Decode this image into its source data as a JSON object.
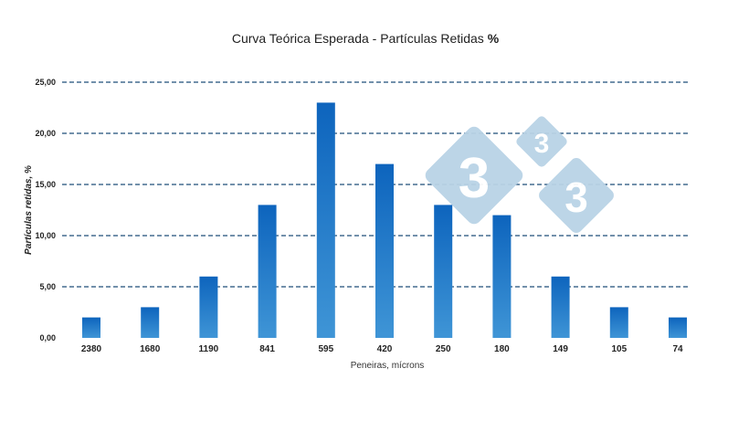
{
  "chart_data": {
    "type": "bar",
    "title": "Curva Teórica Esperada - Partículas Retidas",
    "title_suffix": "%",
    "xlabel": "Peneiras, mícrons",
    "ylabel": "Partículas retidas, %",
    "categories": [
      "2380",
      "1680",
      "1190",
      "841",
      "595",
      "420",
      "250",
      "180",
      "149",
      "105",
      "74"
    ],
    "values": [
      2,
      3,
      6,
      13,
      23,
      17,
      13,
      12,
      6,
      3,
      2
    ],
    "ylim": [
      0,
      25
    ],
    "yticks": [
      "0,00",
      "5,00",
      "10,00",
      "15,00",
      "20,00",
      "25,00"
    ],
    "grid": "dashed horizontal",
    "legend": "none",
    "colors": {
      "bar_top": "#0d64bd",
      "bar_bottom": "#3f95d6",
      "grid": "#1f4e79",
      "watermark": "#b9d3e6"
    }
  },
  "watermark": {
    "glyph": "3",
    "icon": "333-logo-icon"
  }
}
